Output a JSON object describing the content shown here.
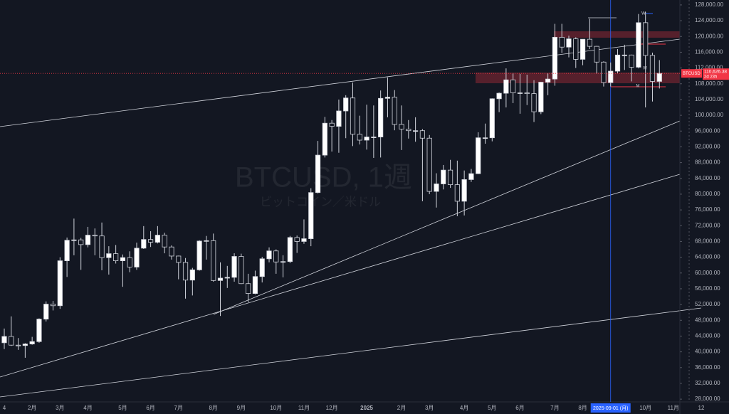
{
  "chart_data": {
    "type": "candlestick",
    "title": "BTCUSD, 1週",
    "subtitle": "ビットコイン／米ドル",
    "symbol": "BTCUSD",
    "last_price": {
      "value": 110626.38,
      "label": "110,626.38"
    },
    "countdown": "2d 23h",
    "annotations": [
      "W",
      "W",
      "M",
      "W",
      "M"
    ],
    "categories": [
      "4",
      null,
      null,
      null,
      "2月",
      null,
      null,
      null,
      "3月",
      null,
      null,
      null,
      "4月",
      null,
      null,
      null,
      null,
      "5月",
      null,
      null,
      null,
      "6月",
      null,
      null,
      null,
      "7月",
      null,
      null,
      null,
      null,
      "8月",
      null,
      null,
      null,
      "9月",
      null,
      null,
      null,
      null,
      "10月",
      null,
      null,
      null,
      "11月",
      null,
      null,
      null,
      "12月",
      null,
      null,
      null,
      null,
      "2025",
      null,
      null,
      null,
      null,
      "2月",
      null,
      null,
      null,
      "3月",
      null,
      null,
      null,
      null,
      "4月",
      null,
      null,
      null,
      "5月",
      null,
      null,
      null,
      "6月",
      null,
      null,
      null,
      null,
      "7月",
      null,
      null,
      null,
      "8月",
      null,
      null,
      null,
      "2025-09-01 (月)",
      null,
      null,
      null,
      null,
      "10月",
      null,
      null,
      null,
      "11月",
      null,
      null,
      null,
      "12"
    ],
    "series": [
      {
        "name": "BTCUSD",
        "open": [
          42300,
          43900,
          41700,
          41600,
          42000,
          42600,
          48300,
          52100,
          51700,
          63100,
          68300,
          68400,
          67200,
          69600,
          69400,
          63900,
          64900,
          63100,
          63900,
          61500,
          66300,
          68500,
          67800,
          69600,
          66600,
          64300,
          62700,
          58200,
          60800,
          68100,
          68200,
          58100,
          58700,
          58900,
          64200,
          57300,
          54800,
          59100,
          63600,
          65600,
          62800,
          62900,
          69000,
          68000,
          68700,
          80400,
          89900,
          98000,
          97200,
          101100,
          104400,
          95200,
          93700,
          94500,
          94500,
          104300,
          104600,
          97700,
          96500,
          96100,
          96100,
          94200,
          80700,
          82600,
          86100,
          82400,
          78200,
          83700,
          85200,
          94300,
          94300,
          104200,
          105600,
          109000,
          105700,
          105700,
          105500,
          100900,
          108400,
          109200,
          119800,
          117300,
          119400,
          114200,
          119300,
          117500,
          113500,
          108300,
          111200,
          115300,
          115300,
          112200,
          123500,
          115200,
          108600,
          null,
          null,
          null,
          null,
          null,
          null
        ],
        "high": [
          45900,
          49000,
          43500,
          42200,
          43800,
          48500,
          52800,
          52900,
          64000,
          69000,
          73800,
          68900,
          71700,
          71300,
          72800,
          66800,
          67100,
          64700,
          65500,
          67700,
          71900,
          70600,
          71900,
          70200,
          67000,
          64400,
          63800,
          61300,
          68300,
          69400,
          70000,
          62700,
          61800,
          65000,
          64900,
          59800,
          60600,
          64100,
          66500,
          66000,
          64500,
          69400,
          69500,
          73600,
          81500,
          93500,
          99600,
          98800,
          104000,
          105100,
          108300,
          99900,
          102700,
          102500,
          106300,
          109600,
          106400,
          102500,
          98800,
          99500,
          96500,
          95000,
          85300,
          87400,
          88700,
          88500,
          86000,
          86400,
          95700,
          97900,
          104300,
          105800,
          111900,
          110700,
          110500,
          110300,
          108900,
          108500,
          110600,
          123200,
          123200,
          120200,
          119800,
          119300,
          124500,
          117600,
          113700,
          113400,
          116800,
          117900,
          115400,
          125700,
          126200,
          115900,
          114000,
          null,
          null,
          null,
          null,
          null,
          null
        ],
        "low": [
          40700,
          41500,
          40500,
          38500,
          41800,
          42300,
          47700,
          50500,
          50900,
          59000,
          64500,
          60800,
          66500,
          64500,
          60700,
          59600,
          62400,
          56500,
          60200,
          60800,
          66100,
          66600,
          67500,
          65000,
          63400,
          58400,
          53500,
          54300,
          60600,
          63400,
          57800,
          49100,
          56200,
          57800,
          57200,
          52600,
          54600,
          57600,
          62700,
          59800,
          58900,
          62500,
          65100,
          67400,
          66800,
          80200,
          89300,
          90800,
          90500,
          94200,
          92200,
          92600,
          91300,
          89200,
          89300,
          99500,
          96200,
          91200,
          94100,
          93300,
          78200,
          80000,
          76600,
          81200,
          81600,
          74400,
          74600,
          83100,
          85100,
          92800,
          93400,
          100800,
          102000,
          103100,
          100400,
          102600,
          98300,
          100300,
          105100,
          107500,
          115800,
          114700,
          112000,
          112700,
          116800,
          110600,
          107300,
          107300,
          110600,
          111500,
          108600,
          111900,
          102000,
          103500,
          106800,
          null,
          null,
          null,
          null,
          null,
          null
        ],
        "close": [
          43900,
          41700,
          41600,
          42000,
          42600,
          48300,
          52100,
          51700,
          63100,
          68300,
          68400,
          67200,
          69600,
          69400,
          63900,
          64900,
          63100,
          63900,
          61500,
          66300,
          68500,
          67800,
          69600,
          66600,
          64300,
          62700,
          58200,
          60800,
          68100,
          68200,
          58100,
          58700,
          58900,
          64200,
          57300,
          54800,
          59100,
          63600,
          65600,
          62800,
          62900,
          69000,
          68000,
          68700,
          80400,
          89900,
          98000,
          97200,
          101100,
          104400,
          95200,
          93700,
          94500,
          94500,
          104300,
          104600,
          97700,
          96500,
          96100,
          96100,
          94200,
          80700,
          82600,
          86100,
          82400,
          78200,
          83700,
          85200,
          94300,
          94300,
          104200,
          105600,
          109000,
          105700,
          105700,
          105500,
          100900,
          108400,
          109200,
          119800,
          117300,
          119400,
          114200,
          119300,
          117500,
          113500,
          108300,
          111200,
          115300,
          115300,
          112200,
          123500,
          115200,
          108600,
          110626.38,
          null,
          null,
          null,
          null,
          null,
          null
        ]
      }
    ],
    "up_color": "#ffffff",
    "down_color": "#131722",
    "wick_color": "#d1d4dc",
    "price_color": "#f23645",
    "crosshair_color": "#2962ff",
    "grid": false,
    "ylim": [
      27300,
      129250
    ],
    "yticks": [
      {
        "value": 128000,
        "label": "128,000.00"
      },
      {
        "value": 124000,
        "label": "124,000.00"
      },
      {
        "value": 120000,
        "label": "120,000.00"
      },
      {
        "value": 116000,
        "label": "116,000.00"
      },
      {
        "value": 112000,
        "label": "112,000.00"
      },
      {
        "value": 108000,
        "label": "108,000.00"
      },
      {
        "value": 104000,
        "label": "104,000.00"
      },
      {
        "value": 100000,
        "label": "100,000.00"
      },
      {
        "value": 96000,
        "label": "96,000.00"
      },
      {
        "value": 92000,
        "label": "92,000.00"
      },
      {
        "value": 88000,
        "label": "88,000.00"
      },
      {
        "value": 84000,
        "label": "84,000.00"
      },
      {
        "value": 80000,
        "label": "80,000.00"
      },
      {
        "value": 76000,
        "label": "76,000.00"
      },
      {
        "value": 72000,
        "label": "72,000.00"
      },
      {
        "value": 68000,
        "label": "68,000.00"
      },
      {
        "value": 64000,
        "label": "64,000.00"
      },
      {
        "value": 60000,
        "label": "60,000.00"
      },
      {
        "value": 56000,
        "label": "56,000.00"
      },
      {
        "value": 52000,
        "label": "52,000.00"
      },
      {
        "value": 48000,
        "label": "48,000.00"
      },
      {
        "value": 44000,
        "label": "44,000.00"
      },
      {
        "value": 40000,
        "label": "40,000.00"
      },
      {
        "value": 36000,
        "label": "36,000.00"
      },
      {
        "value": 32000,
        "label": "32,000.00"
      },
      {
        "value": 28000,
        "label": "28,000.00"
      }
    ]
  }
}
